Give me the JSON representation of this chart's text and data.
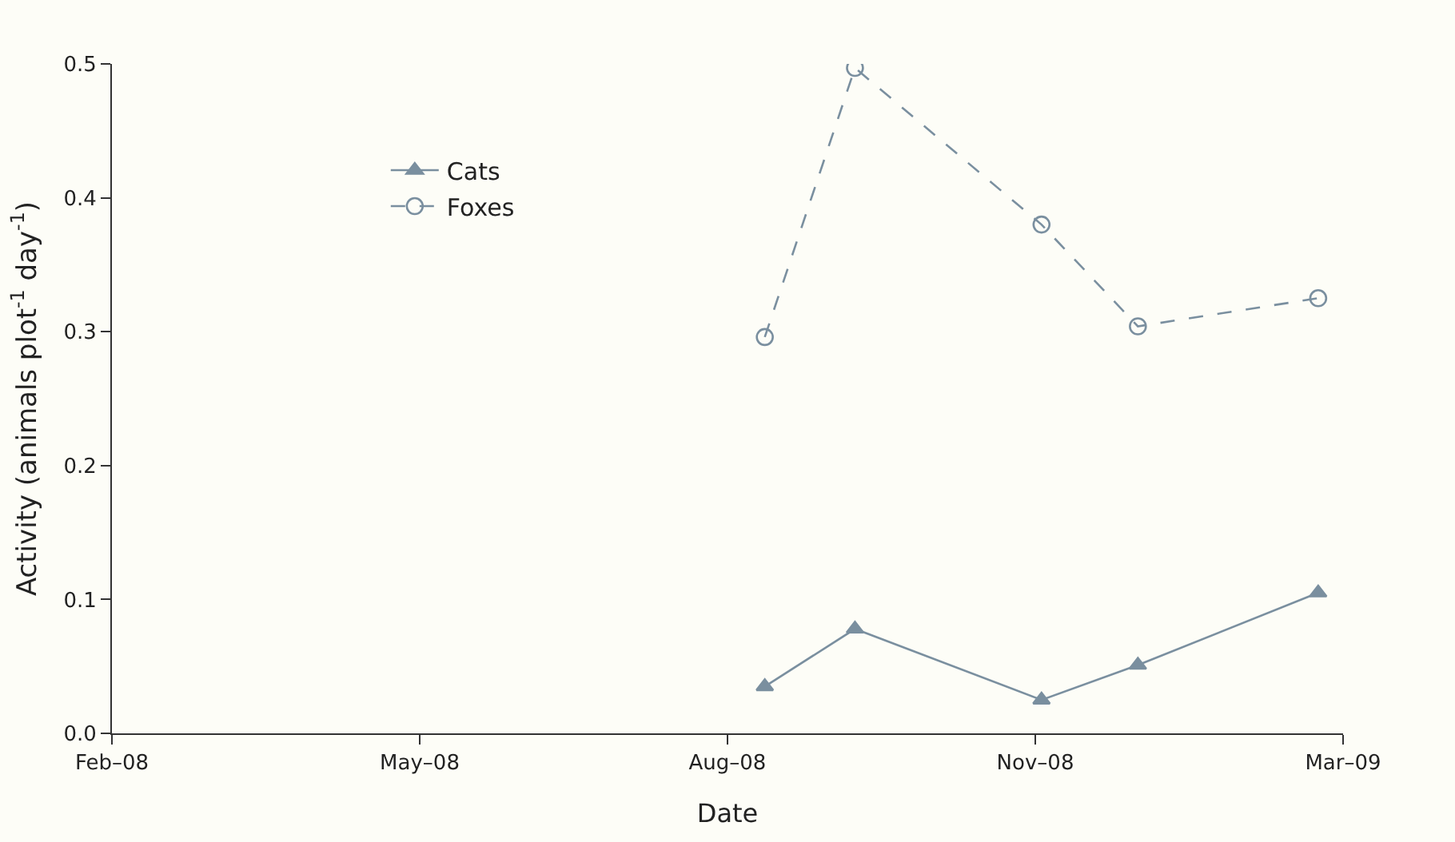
{
  "chart_data": {
    "type": "line",
    "xlabel": "Date",
    "ylabel": "Activity (animals plot$^{-1}$ day$^{-1}$)",
    "xlim": [
      "2008-02-01",
      "2009-03-03"
    ],
    "xticks": [
      {
        "value": "2008-02-01",
        "label": "Feb–08"
      },
      {
        "value": "2008-05-10",
        "label": "May–08"
      },
      {
        "value": "2008-08-17",
        "label": "Aug–08"
      },
      {
        "value": "2008-11-24",
        "label": "Nov–08"
      },
      {
        "value": "2009-03-03",
        "label": "Mar–09"
      }
    ],
    "ylim": [
      0,
      0.5
    ],
    "yticks": [
      {
        "value": 0,
        "label": "0.0"
      },
      {
        "value": 0.1,
        "label": "0.1"
      },
      {
        "value": 0.2,
        "label": "0.2"
      },
      {
        "value": 0.3,
        "label": "0.3"
      },
      {
        "value": 0.4,
        "label": "0.4"
      },
      {
        "value": 0.5,
        "label": "0.5"
      }
    ],
    "x": [
      "2008-08-29",
      "2008-09-27",
      "2008-11-26",
      "2008-12-27",
      "2009-02-23"
    ],
    "series": [
      {
        "name": "Cats",
        "color": "#7a8f9f",
        "marker": "triangle",
        "line_style": "solid",
        "values": [
          0.035,
          0.078,
          0.025,
          0.051,
          0.105
        ]
      },
      {
        "name": "Foxes",
        "color": "#7a8f9f",
        "marker": "circle",
        "line_style": "dashed",
        "values": [
          0.296,
          0.497,
          0.38,
          0.304,
          0.325
        ]
      }
    ],
    "grid": false,
    "legend": "top left"
  }
}
